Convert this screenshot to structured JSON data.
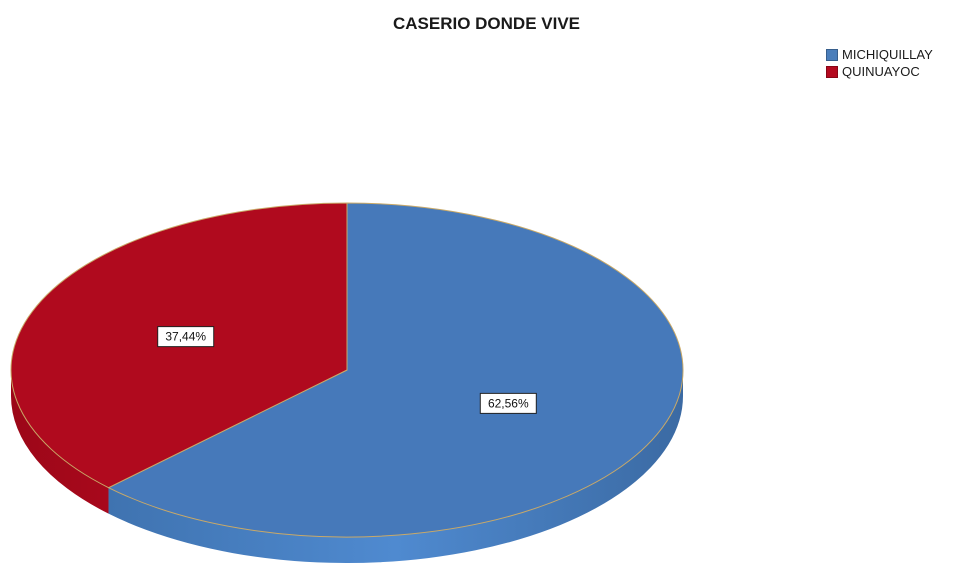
{
  "chart_data": {
    "type": "pie",
    "title": "CASERIO DONDE VIVE",
    "categories": [
      "MICHIQUILLAY",
      "QUINUAYOC"
    ],
    "values": [
      62.56,
      37.44
    ],
    "labels": [
      "62,56%",
      "37,44%"
    ],
    "colors": [
      "#4a7ebb",
      "#b4091f"
    ],
    "legend_position": "top-right",
    "three_d": true
  }
}
